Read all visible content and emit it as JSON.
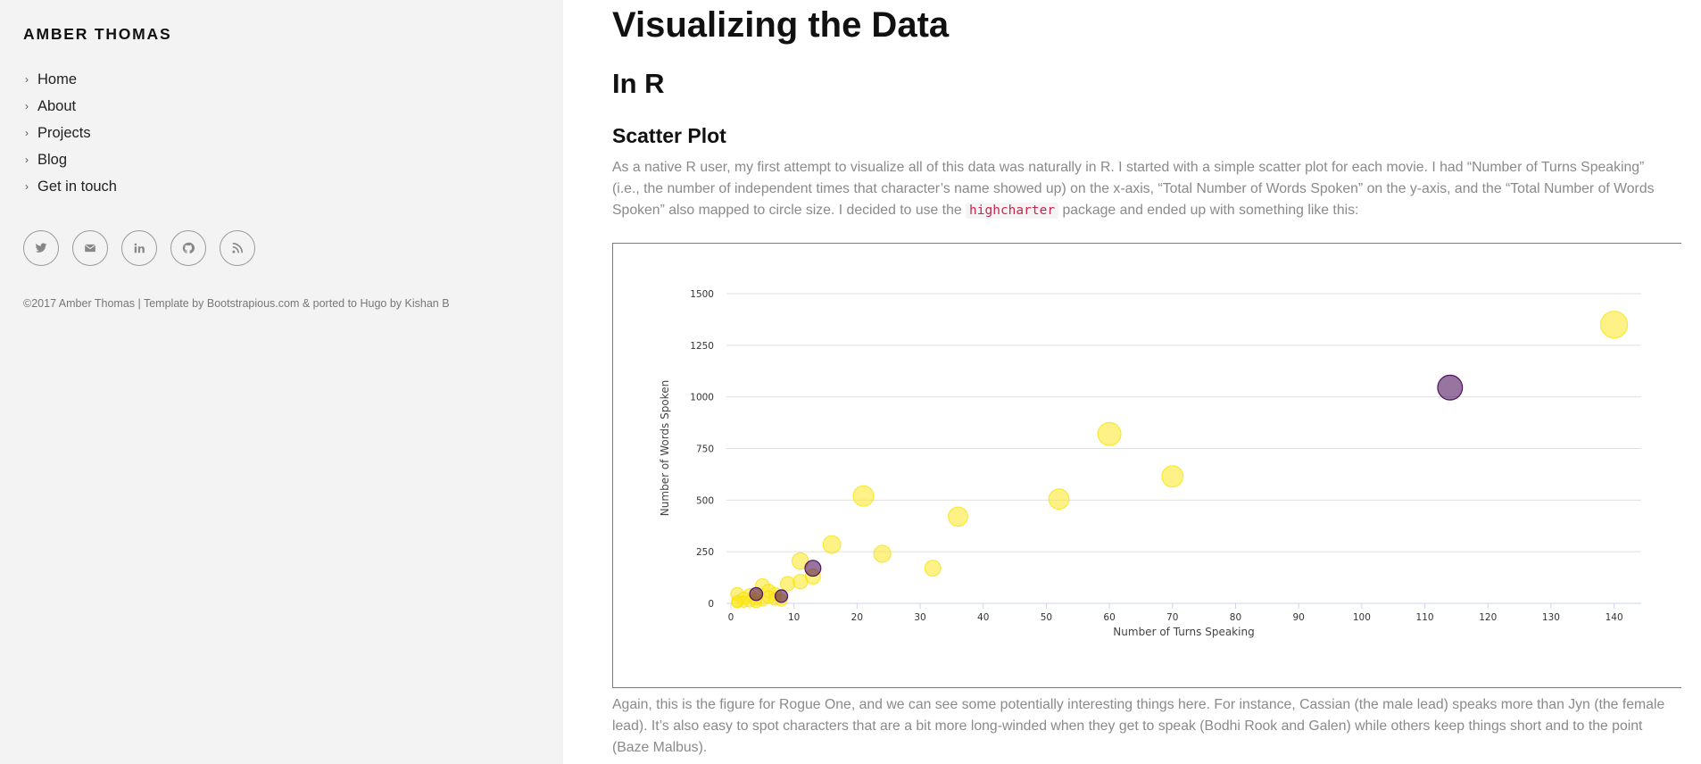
{
  "sidebar": {
    "site_title": "AMBER THOMAS",
    "nav_items": [
      {
        "label": "Home"
      },
      {
        "label": "About"
      },
      {
        "label": "Projects"
      },
      {
        "label": "Blog"
      },
      {
        "label": "Get in touch"
      }
    ],
    "social_icons": [
      "twitter-icon",
      "envelope-icon",
      "linkedin-icon",
      "github-icon",
      "rss-icon"
    ],
    "copyright": "©2017 Amber Thomas | Template by Bootstrapious.com & ported to Hugo by Kishan B"
  },
  "main": {
    "title": "Visualizing the Data",
    "section_heading": "In R",
    "subsection_heading": "Scatter Plot",
    "para1_before_code": "As a native R user, my first attempt to visualize all of this data was naturally in R. I started with a simple scatter plot for each movie. I had “Number of Turns Speaking” (i.e., the number of independent times that character’s name showed up) on the x-axis, “Total Number of Words Spoken” on the y-axis, and the “Total Number of Words Spoken” also mapped to circle size. I decided to use the ",
    "para1_code": "highcharter",
    "para1_after_code": " package and ended up with something like this:",
    "para2": "Again, this is the figure for Rogue One, and we can see some potentially interesting things here. For instance, Cassian (the male lead) speaks more than Jyn (the female lead). It’s also easy to spot characters that are a bit more long-winded when they get to speak (Bodhi Rook and Galen) while others keep things short and to the point (Baze Malbus)."
  },
  "colors": {
    "sidebar_bg": "#f3f3f3",
    "point_yellow": "#fde725",
    "point_purple": "#440154",
    "code_text": "#c7254e"
  },
  "chart_data": {
    "type": "scatter",
    "title": "",
    "xlabel": "Number of Turns Speaking",
    "ylabel": "Number of Words Spoken",
    "xlim": [
      0,
      145
    ],
    "ylim": [
      0,
      1500
    ],
    "x_ticks": [
      0,
      10,
      20,
      30,
      40,
      50,
      60,
      70,
      80,
      90,
      100,
      110,
      120,
      130,
      140
    ],
    "y_ticks": [
      0,
      250,
      500,
      750,
      1000,
      1250,
      1500
    ],
    "grid": true,
    "series": [
      {
        "color": "#fde725",
        "points": [
          {
            "x": 140,
            "y": 1350,
            "size": 1350
          },
          {
            "x": 60,
            "y": 820,
            "size": 820
          },
          {
            "x": 70,
            "y": 615,
            "size": 615
          },
          {
            "x": 21,
            "y": 520,
            "size": 520
          },
          {
            "x": 52,
            "y": 505,
            "size": 505
          },
          {
            "x": 36,
            "y": 420,
            "size": 420
          },
          {
            "x": 16,
            "y": 285,
            "size": 285
          },
          {
            "x": 24,
            "y": 240,
            "size": 240
          },
          {
            "x": 11,
            "y": 205,
            "size": 205
          },
          {
            "x": 32,
            "y": 170,
            "size": 170
          },
          {
            "x": 13,
            "y": 130,
            "size": 130
          },
          {
            "x": 11,
            "y": 105,
            "size": 105
          },
          {
            "x": 9,
            "y": 95,
            "size": 95
          },
          {
            "x": 5,
            "y": 85,
            "size": 85
          },
          {
            "x": 6,
            "y": 60,
            "size": 60
          },
          {
            "x": 7,
            "y": 45,
            "size": 45
          },
          {
            "x": 3,
            "y": 40,
            "size": 40
          },
          {
            "x": 1,
            "y": 45,
            "size": 45
          },
          {
            "x": 2,
            "y": 25,
            "size": 25
          },
          {
            "x": 4,
            "y": 20,
            "size": 20
          },
          {
            "x": 1,
            "y": 10,
            "size": 10
          },
          {
            "x": 2,
            "y": 8,
            "size": 8
          },
          {
            "x": 3,
            "y": 10,
            "size": 10
          },
          {
            "x": 5,
            "y": 15,
            "size": 15
          },
          {
            "x": 6,
            "y": 30,
            "size": 30
          },
          {
            "x": 7,
            "y": 20,
            "size": 20
          },
          {
            "x": 8,
            "y": 15,
            "size": 15
          },
          {
            "x": 4,
            "y": 5,
            "size": 5
          },
          {
            "x": 1,
            "y": 3,
            "size": 3
          }
        ]
      },
      {
        "color": "#440154",
        "points": [
          {
            "x": 114,
            "y": 1045,
            "size": 1045
          },
          {
            "x": 13,
            "y": 170,
            "size": 170
          },
          {
            "x": 4,
            "y": 45,
            "size": 45
          },
          {
            "x": 8,
            "y": 35,
            "size": 35
          }
        ]
      }
    ]
  }
}
